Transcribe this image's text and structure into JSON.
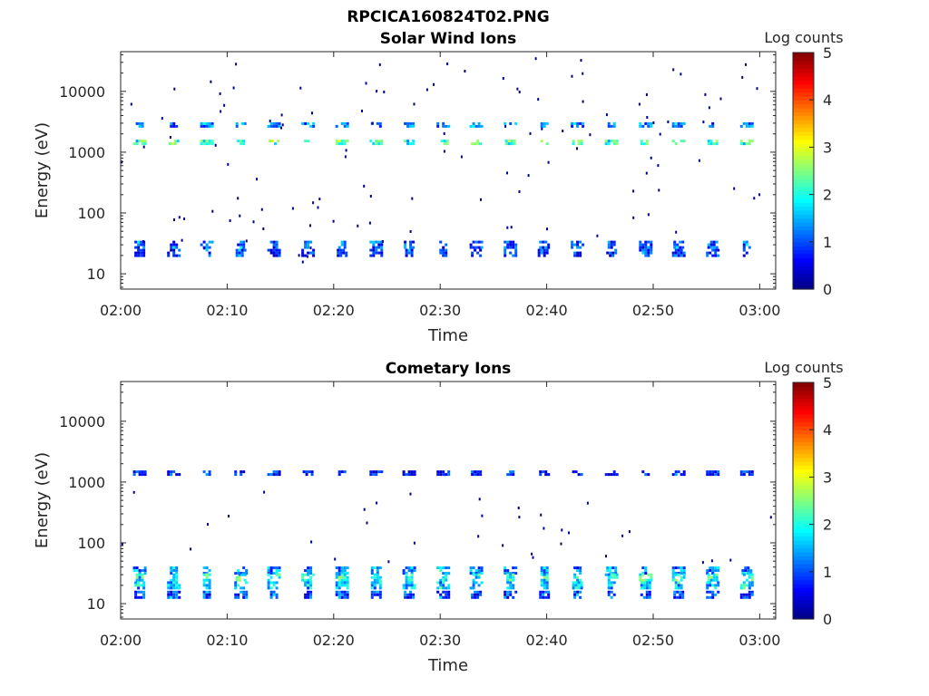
{
  "figure": {
    "title": "RPCICA160824T02.PNG"
  },
  "colorbar": {
    "label": "Log counts",
    "range": [
      0,
      5
    ],
    "tick_labels": [
      "0",
      "1",
      "2",
      "3",
      "4",
      "5"
    ],
    "colormap": "jet"
  },
  "chart_data": [
    {
      "type": "heatmap",
      "title": "Solar Wind Ions",
      "xlabel": "Time",
      "ylabel": "Energy (eV)",
      "y_scale": "log",
      "x_ticks": [
        "02:00",
        "02:10",
        "02:20",
        "02:30",
        "02:40",
        "02:50",
        "03:00"
      ],
      "y_ticks": [
        "10",
        "100",
        "1000",
        "10000"
      ],
      "scan_start_minutes": [
        1.8,
        5.0,
        8.1,
        11.3,
        14.4,
        17.6,
        20.8,
        24.0,
        27.1,
        30.3,
        33.4,
        36.6,
        39.8,
        42.9,
        46.1,
        49.3,
        52.4,
        55.6,
        58.8
      ],
      "bands": [
        {
          "energy_eV": 2800,
          "log_counts": 1.2
        },
        {
          "energy_eV": 1450,
          "log_counts": 2.2
        },
        {
          "energy_eV": 30,
          "log_counts": 1.0
        },
        {
          "energy_eV": 22,
          "log_counts": 0.8
        }
      ],
      "scattered_single_counts": true
    },
    {
      "type": "heatmap",
      "title": "Cometary Ions",
      "xlabel": "Time",
      "ylabel": "Energy (eV)",
      "y_scale": "log",
      "x_ticks": [
        "02:00",
        "02:10",
        "02:20",
        "02:30",
        "02:40",
        "02:50",
        "03:00"
      ],
      "y_ticks": [
        "10",
        "100",
        "1000",
        "10000"
      ],
      "scan_start_minutes": [
        1.8,
        5.0,
        8.1,
        11.3,
        14.4,
        17.6,
        20.8,
        24.0,
        27.1,
        30.3,
        33.4,
        36.6,
        39.8,
        42.9,
        46.1,
        49.3,
        52.4,
        55.6,
        58.8
      ],
      "bands": [
        {
          "energy_eV": 1400,
          "log_counts": 0.7
        },
        {
          "energy_eV": 35,
          "log_counts": 1.3
        },
        {
          "energy_eV": 27,
          "log_counts": 2.0
        },
        {
          "energy_eV": 20,
          "log_counts": 1.6
        },
        {
          "energy_eV": 14,
          "log_counts": 1.0
        }
      ],
      "scattered_single_counts": true
    }
  ]
}
